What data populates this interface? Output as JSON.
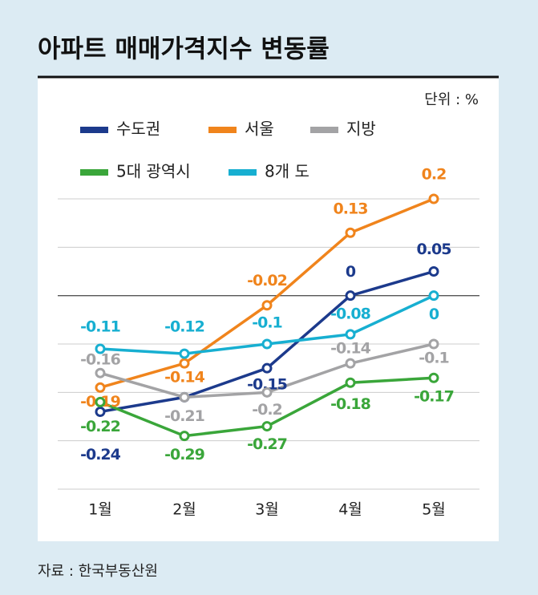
{
  "chart_data": {
    "type": "line",
    "title": "아파트 매매가격지수 변동률",
    "unit": "단위 : %",
    "source": "자료 : 한국부동산원",
    "categories": [
      "1월",
      "2월",
      "3월",
      "4월",
      "5월"
    ],
    "series": [
      {
        "name": "수도권",
        "color": "#1c3a8c",
        "values": [
          -0.24,
          -0.21,
          -0.15,
          0,
          0.05
        ]
      },
      {
        "name": "서울",
        "color": "#f0841c",
        "values": [
          -0.19,
          -0.14,
          -0.02,
          0.13,
          0.2
        ]
      },
      {
        "name": "지방",
        "color": "#a3a3a5",
        "values": [
          -0.16,
          -0.21,
          -0.2,
          -0.14,
          -0.1
        ]
      },
      {
        "name": "5대 광역시",
        "color": "#3aa63a",
        "values": [
          -0.22,
          -0.29,
          -0.27,
          -0.18,
          -0.17
        ]
      },
      {
        "name": "8개 도",
        "color": "#17afd1",
        "values": [
          -0.11,
          -0.12,
          -0.1,
          -0.08,
          0
        ]
      }
    ],
    "ylim": [
      -0.4,
      0.2
    ],
    "yticks": [
      -0.4,
      -0.3,
      -0.2,
      -0.1,
      0,
      0.1,
      0.2
    ],
    "grid": true
  }
}
